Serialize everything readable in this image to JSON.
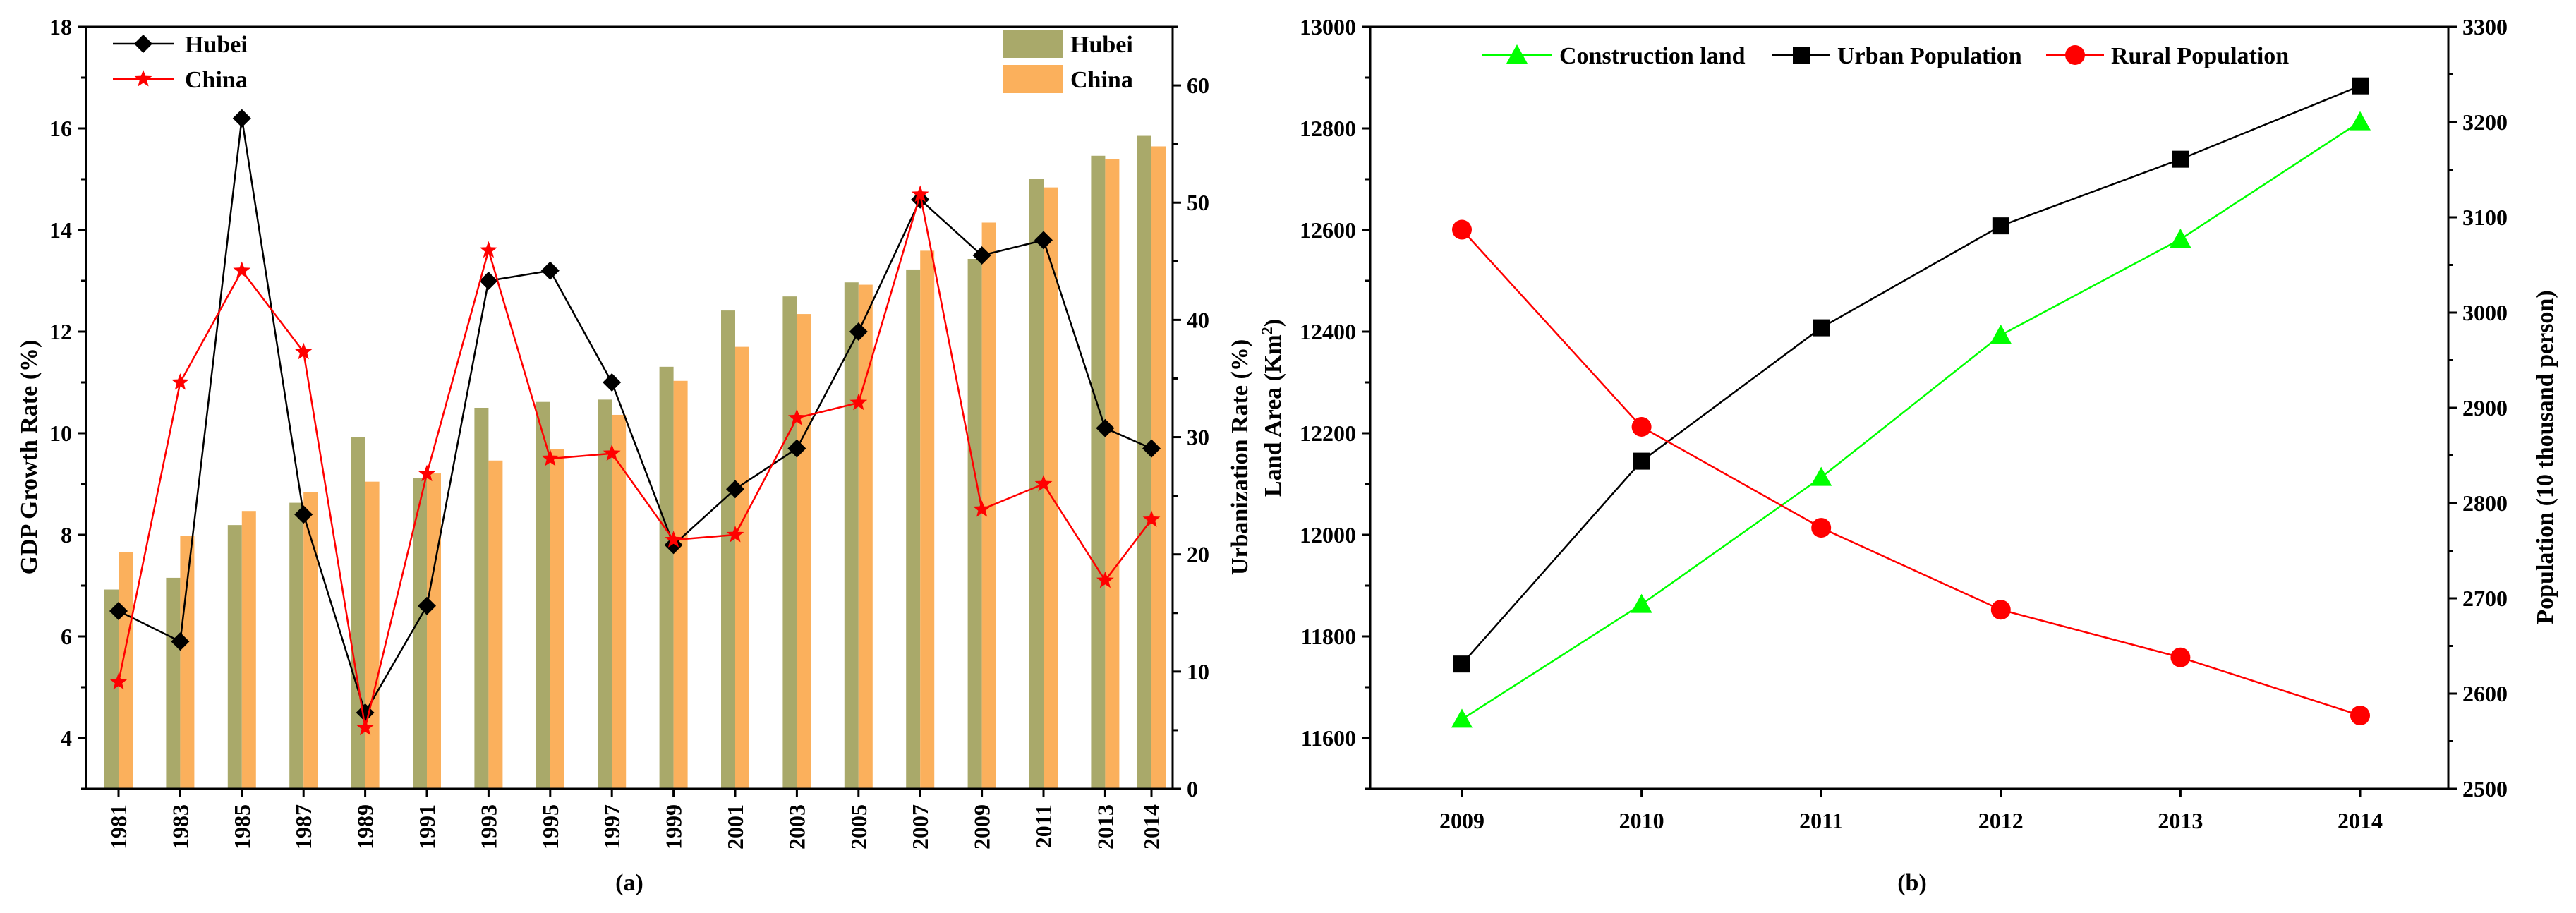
{
  "chart_data": [
    {
      "panel": "(a)",
      "type": "bar+line",
      "categories": [
        "1981",
        "1983",
        "1985",
        "1987",
        "1989",
        "1991",
        "1993",
        "1995",
        "1997",
        "1999",
        "2001",
        "2003",
        "2005",
        "2007",
        "2009",
        "2011",
        "2013",
        "2014"
      ],
      "ylabel_left": "GDP Growth Rate (%)",
      "ylabel_right": "Urbanization Rate (%)",
      "ylim_left": [
        3,
        18
      ],
      "yticks_left": [
        4,
        6,
        8,
        10,
        12,
        14,
        16,
        18
      ],
      "ylim_right": [
        0,
        65
      ],
      "yticks_right": [
        0,
        10,
        20,
        30,
        40,
        50,
        60
      ],
      "line_series": [
        {
          "name": "Hubei",
          "color": "#000000",
          "marker": "diamond",
          "values": [
            6.5,
            5.9,
            16.2,
            8.4,
            4.5,
            6.6,
            13.0,
            13.2,
            11.0,
            7.8,
            8.9,
            9.7,
            12.0,
            14.6,
            13.5,
            13.8,
            10.1,
            9.7
          ]
        },
        {
          "name": "China",
          "color": "#ff0000",
          "marker": "star",
          "values": [
            5.1,
            11.0,
            13.2,
            11.6,
            4.2,
            9.2,
            13.6,
            9.5,
            9.6,
            7.9,
            8.0,
            10.3,
            10.6,
            14.7,
            8.5,
            9.0,
            7.1,
            8.3
          ]
        }
      ],
      "bar_series": [
        {
          "name": "Hubei",
          "color": "#a9a96a",
          "values": [
            17.0,
            18.0,
            22.5,
            24.4,
            30.0,
            26.5,
            32.5,
            33.0,
            33.2,
            36.0,
            40.8,
            42.0,
            43.2,
            44.3,
            45.2,
            52.0,
            54.0,
            55.7
          ]
        },
        {
          "name": "China",
          "color": "#fbb05c",
          "values": [
            20.2,
            21.6,
            23.7,
            25.3,
            26.2,
            26.9,
            28.0,
            29.0,
            31.9,
            34.8,
            37.7,
            40.5,
            43.0,
            45.9,
            48.3,
            51.3,
            53.7,
            54.8
          ]
        }
      ]
    },
    {
      "panel": "(b)",
      "type": "line",
      "categories": [
        "2009",
        "2010",
        "2011",
        "2012",
        "2013",
        "2014"
      ],
      "ylabel_left": "Land Area (Km",
      "ylabel_left_sup": "2",
      "ylabel_left_end": ")",
      "ylabel_right": "Population (10 thousand person)",
      "ylim_left": [
        11500,
        13000
      ],
      "yticks_left": [
        11600,
        11800,
        12000,
        12200,
        12400,
        12600,
        12800,
        13000
      ],
      "ylim_right": [
        2500,
        3300
      ],
      "yticks_right": [
        2500,
        2600,
        2700,
        2800,
        2900,
        3000,
        3100,
        3200,
        3300
      ],
      "series": [
        {
          "name": "Construction land",
          "axis": "left",
          "color": "#00ff00",
          "marker": "triangle",
          "values": [
            11637,
            11863,
            12113,
            12393,
            12582,
            12813
          ]
        },
        {
          "name": "Urban Population",
          "axis": "right",
          "color": "#000000",
          "marker": "square",
          "values": [
            2631,
            2844,
            2984,
            3091,
            3161,
            3238
          ]
        },
        {
          "name": "Rural Population",
          "axis": "right",
          "color": "#ff0000",
          "marker": "circle",
          "values": [
            3087,
            2880,
            2774,
            2688,
            2638,
            2577
          ]
        }
      ]
    }
  ]
}
